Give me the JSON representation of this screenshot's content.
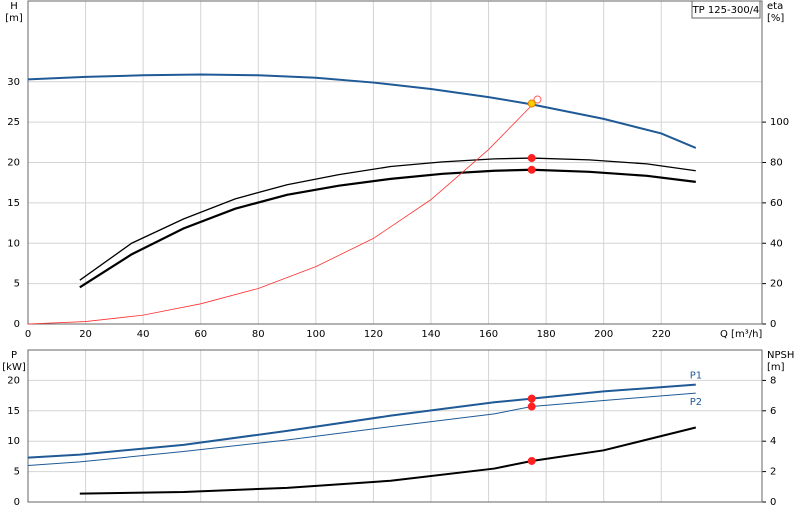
{
  "chart_data": [
    {
      "type": "line",
      "title": "TP 125-300/4",
      "ylabel": "H",
      "yunit": "[m]",
      "y2label": "eta",
      "y2unit": "[%]",
      "xlabel": "Q [m³/h]",
      "xlim": [
        0,
        255
      ],
      "xticks": [
        0,
        20,
        40,
        60,
        80,
        100,
        120,
        140,
        160,
        180,
        200,
        220
      ],
      "ylim": [
        0,
        40
      ],
      "yticks": [
        0,
        5,
        10,
        15,
        20,
        25,
        30
      ],
      "y2lim": [
        0,
        160
      ],
      "y2ticks": [
        0,
        20,
        40,
        60,
        80,
        100
      ],
      "grid": true,
      "show_xtick_labels": true,
      "series": [
        {
          "color": "#1f5a96",
          "line_width": 2,
          "axis": "y",
          "x": [
            0,
            20,
            40,
            60,
            80,
            100,
            120,
            140,
            160,
            175,
            200,
            220,
            232
          ],
          "values": [
            30.3,
            30.6,
            30.8,
            30.9,
            30.8,
            30.5,
            29.9,
            29.1,
            28.1,
            27.2,
            25.4,
            23.6,
            21.8
          ]
        },
        {
          "color": "#000000",
          "line_width": 1.3,
          "axis": "y2",
          "x": [
            18,
            36,
            54,
            72,
            90,
            108,
            126,
            144,
            162,
            175,
            195,
            215,
            232
          ],
          "values": [
            21.7,
            40,
            52,
            62,
            69,
            74,
            78,
            80.3,
            81.8,
            82.2,
            81.3,
            79.3,
            75.9
          ]
        },
        {
          "color": "#000000",
          "line_width": 2.2,
          "axis": "y2",
          "x": [
            18,
            36,
            54,
            72,
            90,
            108,
            126,
            144,
            162,
            175,
            195,
            215,
            232
          ],
          "values": [
            18.2,
            34.5,
            47.3,
            57.1,
            64,
            68.5,
            71.9,
            74.4,
            75.9,
            76.4,
            75.4,
            73.4,
            70.4
          ]
        },
        {
          "color": "#ff3030",
          "line_width": 0.8,
          "axis": "y",
          "x": [
            0,
            20,
            40,
            60,
            80,
            100,
            120,
            140,
            160,
            177
          ],
          "values": [
            0,
            0.3,
            1.1,
            2.5,
            4.4,
            7.1,
            10.6,
            15.4,
            21.6,
            27.8
          ]
        }
      ],
      "points": [
        {
          "x": 175,
          "y": 82.2,
          "axis": "y2",
          "color": "#ff2020"
        },
        {
          "x": 175,
          "y": 76.4,
          "axis": "y2",
          "color": "#ff2020"
        },
        {
          "x": 177,
          "y": 27.8,
          "axis": "y",
          "color": "#ff6060",
          "hollow": true
        },
        {
          "x": 175,
          "y": 27.3,
          "axis": "y",
          "color": "#ffcc00"
        }
      ]
    },
    {
      "type": "line",
      "ylabel": "P",
      "yunit": "[kW]",
      "y2label": "NPSH",
      "y2unit": "[m]",
      "xlim": [
        0,
        255
      ],
      "xticks": [
        0,
        20,
        40,
        60,
        80,
        100,
        120,
        140,
        160,
        180,
        200,
        220
      ],
      "ylim": [
        0,
        25
      ],
      "yticks": [
        0,
        5,
        10,
        15,
        20
      ],
      "y2lim": [
        0,
        10
      ],
      "y2ticks": [
        0,
        2,
        4,
        6,
        8
      ],
      "grid": true,
      "show_xtick_labels": false,
      "series": [
        {
          "name": "P1",
          "label_position": "above",
          "color": "#1f5a96",
          "line_width": 2,
          "axis": "y",
          "x": [
            0,
            18,
            54,
            90,
            126,
            162,
            175,
            200,
            232
          ],
          "values": [
            7.3,
            7.8,
            9.4,
            11.7,
            14.2,
            16.4,
            17.0,
            18.2,
            19.3
          ]
        },
        {
          "name": "P2",
          "label_position": "below",
          "color": "#1f5a96",
          "line_width": 1,
          "axis": "y",
          "x": [
            0,
            18,
            54,
            90,
            126,
            162,
            175,
            200,
            232
          ],
          "values": [
            6.0,
            6.6,
            8.3,
            10.2,
            12.4,
            14.5,
            15.7,
            16.7,
            17.9
          ]
        },
        {
          "color": "#000000",
          "line_width": 2,
          "axis": "y2",
          "x": [
            18,
            54,
            90,
            126,
            162,
            175,
            200,
            232
          ],
          "values": [
            0.55,
            0.66,
            0.93,
            1.4,
            2.2,
            2.7,
            3.4,
            4.9
          ]
        }
      ],
      "points": [
        {
          "x": 175,
          "y": 17.0,
          "axis": "y",
          "color": "#ff2020"
        },
        {
          "x": 175,
          "y": 15.7,
          "axis": "y",
          "color": "#ff2020"
        },
        {
          "x": 175,
          "y": 2.7,
          "axis": "y2",
          "color": "#ff2020"
        }
      ]
    }
  ]
}
